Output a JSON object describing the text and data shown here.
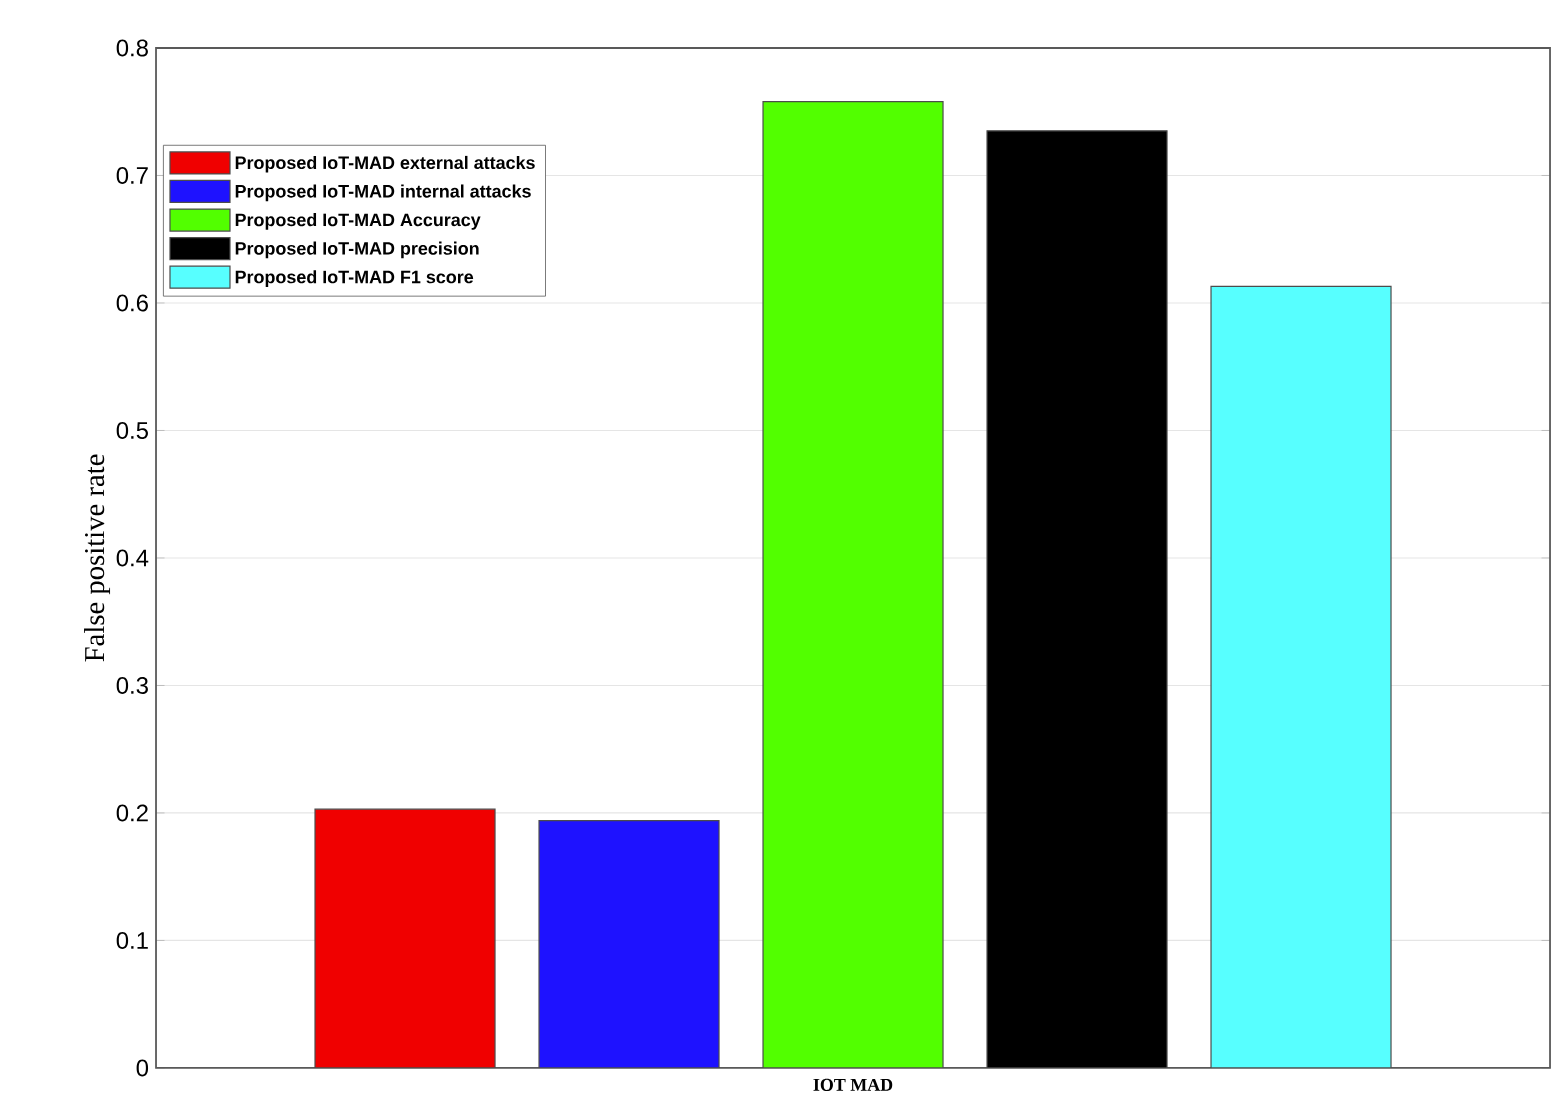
{
  "chart_data": {
    "type": "bar",
    "ylabel": "False positive rate",
    "categories": [
      "IOT MAD"
    ],
    "series": [
      {
        "name": "Proposed IoT-MAD external attacks",
        "color": "#f00000",
        "values": [
          0.203
        ]
      },
      {
        "name": "Proposed IoT-MAD internal attacks",
        "color": "#1e12ff",
        "values": [
          0.194
        ]
      },
      {
        "name": "Proposed IoT-MAD Accuracy",
        "color": "#52ff00",
        "values": [
          0.758
        ]
      },
      {
        "name": "Proposed IoT-MAD precision",
        "color": "#000000",
        "values": [
          0.735
        ]
      },
      {
        "name": "Proposed IoT-MAD F1 score",
        "color": "#57ffff",
        "values": [
          0.613
        ]
      }
    ],
    "ylim": [
      0,
      0.8
    ],
    "yticks": [
      0,
      0.1,
      0.2,
      0.3,
      0.4,
      0.5,
      0.6,
      0.7,
      0.8
    ],
    "grid": "y",
    "legend": "top left"
  }
}
